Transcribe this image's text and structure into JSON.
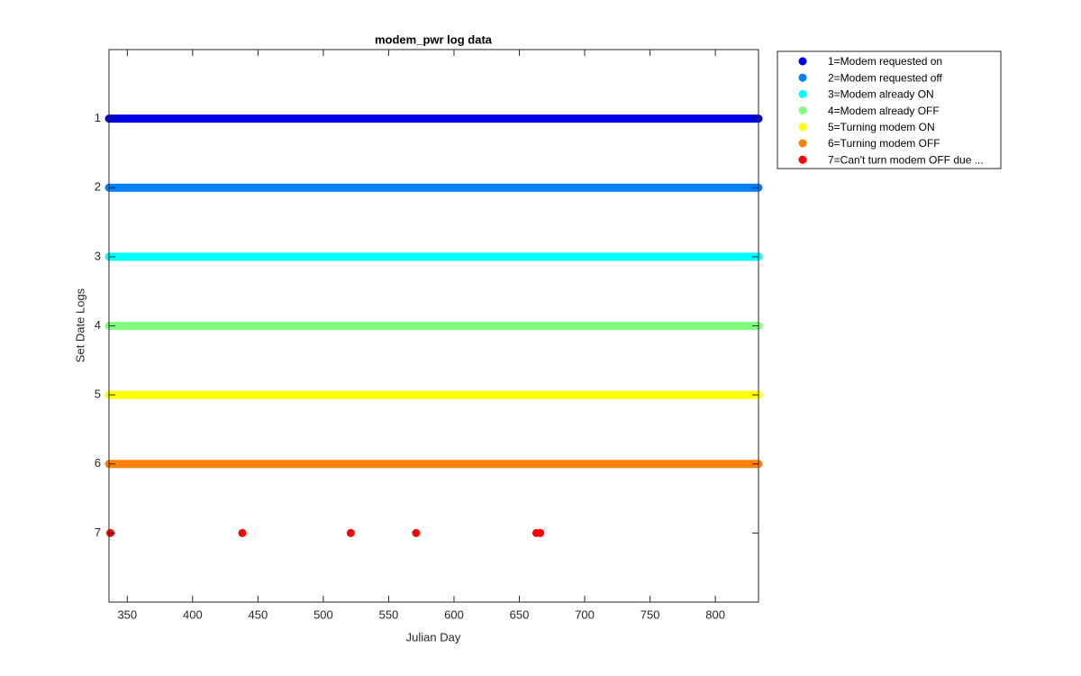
{
  "chart_data": {
    "type": "scatter",
    "title": "modem_pwr log data",
    "x_label": "Julian Day",
    "y_label": "Set Date Logs",
    "xlim": [
      336,
      833
    ],
    "xticks": [
      350,
      400,
      450,
      500,
      550,
      600,
      650,
      700,
      750,
      800
    ],
    "ylim": [
      0,
      8
    ],
    "yticks": [
      1,
      2,
      3,
      4,
      5,
      6,
      7
    ],
    "y_reversed": true,
    "legend": "outside-top-right",
    "series": [
      {
        "name": "1=Modem requested on",
        "color": "#0000e6",
        "mode": "lines",
        "x": [
          336,
          833
        ],
        "values": [
          1,
          1
        ]
      },
      {
        "name": "2=Modem requested off",
        "color": "#0080ff",
        "mode": "lines",
        "x": [
          336,
          833
        ],
        "values": [
          2,
          2
        ]
      },
      {
        "name": "3=Modem already ON",
        "color": "#00ffff",
        "mode": "lines",
        "x": [
          336,
          833
        ],
        "values": [
          3,
          3
        ]
      },
      {
        "name": "4=Modem already OFF",
        "color": "#80ff80",
        "mode": "lines",
        "x": [
          336,
          833
        ],
        "values": [
          4,
          4
        ]
      },
      {
        "name": "5=Turning modem ON",
        "color": "#ffff00",
        "mode": "lines",
        "x": [
          336,
          833
        ],
        "values": [
          5,
          5
        ]
      },
      {
        "name": "6=Turning modem OFF",
        "color": "#ff8000",
        "mode": "lines",
        "x": [
          336,
          833
        ],
        "values": [
          6,
          6
        ]
      },
      {
        "name": "7=Can't turn modem OFF due  ...",
        "color": "#ff0000",
        "mode": "markers",
        "x": [
          337,
          438,
          521,
          571,
          663,
          666
        ],
        "values": [
          7,
          7,
          7,
          7,
          7,
          7
        ]
      }
    ]
  }
}
